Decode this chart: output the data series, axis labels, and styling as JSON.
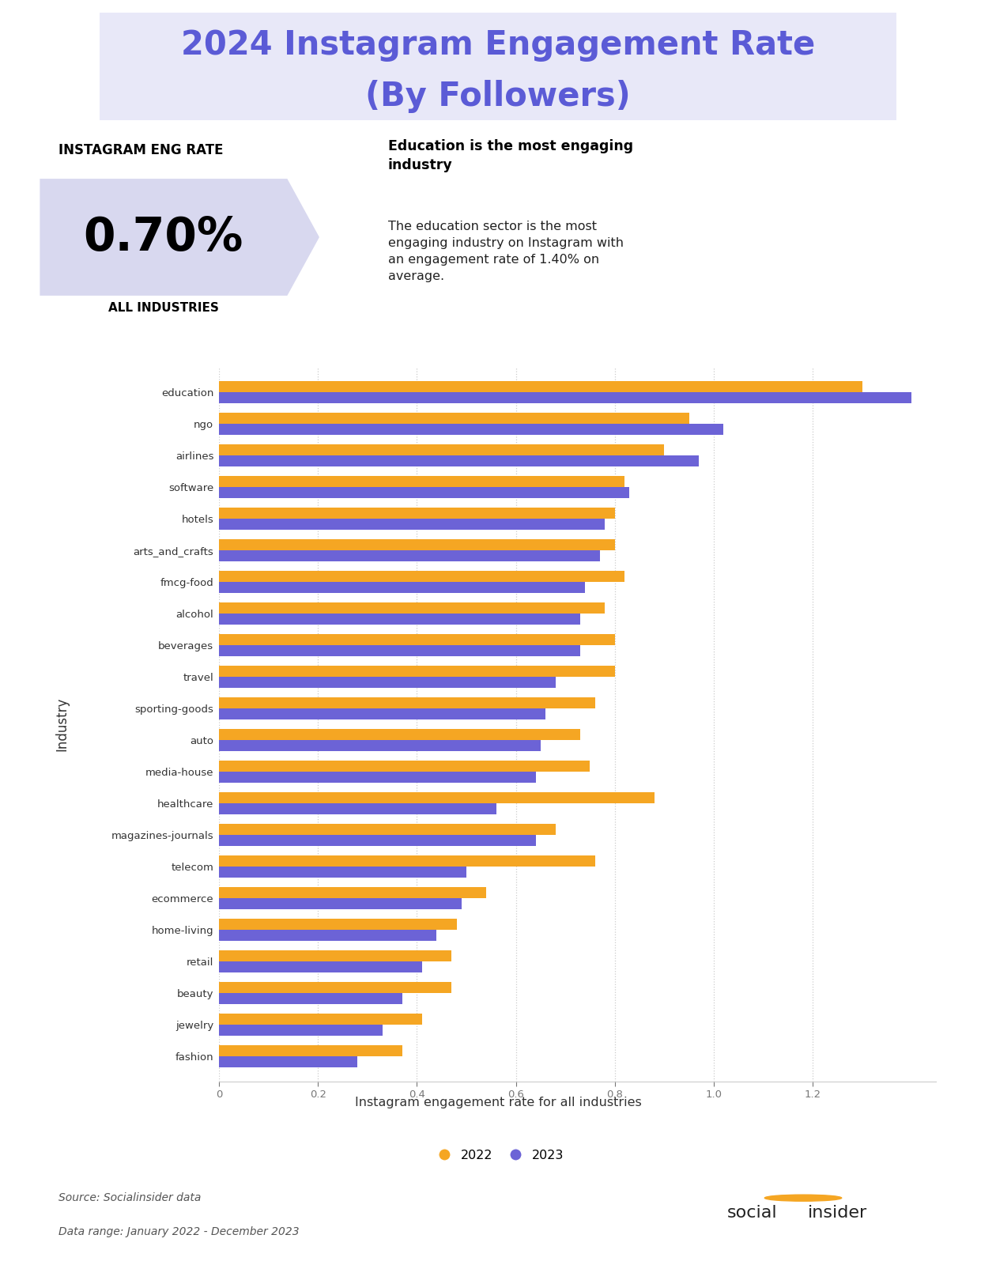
{
  "title_line1": "2024 Instagram Engagement Rate",
  "title_line2": "(By Followers)",
  "title_color": "#5b5bd6",
  "title_bg_color": "#e8e8f8",
  "bg_color": "#ffffff",
  "stat_label": "INSTAGRAM ENG RATE",
  "stat_value": "0.70%",
  "stat_sublabel": "ALL INDUSTRIES",
  "stat_bg_color": "#d8d8ef",
  "insight_title": "Education is the most engaging\nindustry",
  "insight_body": "The education sector is the most\nengaging industry on Instagram with\nan engagement rate of 1.40% on\naverage.",
  "categories": [
    "education",
    "ngo",
    "airlines",
    "software",
    "hotels",
    "arts_and_crafts",
    "fmcg-food",
    "alcohol",
    "beverages",
    "travel",
    "sporting-goods",
    "auto",
    "media-house",
    "healthcare",
    "magazines-journals",
    "telecom",
    "ecommerce",
    "home-living",
    "retail",
    "beauty",
    "jewelry",
    "fashion"
  ],
  "values_2022": [
    1.3,
    0.95,
    0.9,
    0.82,
    0.8,
    0.8,
    0.82,
    0.78,
    0.8,
    0.8,
    0.76,
    0.73,
    0.75,
    0.88,
    0.68,
    0.76,
    0.54,
    0.48,
    0.47,
    0.47,
    0.41,
    0.37
  ],
  "values_2023": [
    1.4,
    1.02,
    0.97,
    0.83,
    0.78,
    0.77,
    0.74,
    0.73,
    0.73,
    0.68,
    0.66,
    0.65,
    0.64,
    0.56,
    0.64,
    0.5,
    0.49,
    0.44,
    0.41,
    0.37,
    0.33,
    0.28
  ],
  "color_2022": "#f5a623",
  "color_2023": "#6c63d6",
  "xlabel": "Instagram engagement rate for all industries",
  "ylabel": "Industry",
  "xlim_max": 1.45,
  "xticks": [
    0,
    0.2,
    0.4,
    0.6,
    0.8,
    1.0,
    1.2
  ],
  "source_text1": "Source: Socialinsider data",
  "source_text2": "Data range: January 2022 - December 2023",
  "grid_color": "#cccccc"
}
